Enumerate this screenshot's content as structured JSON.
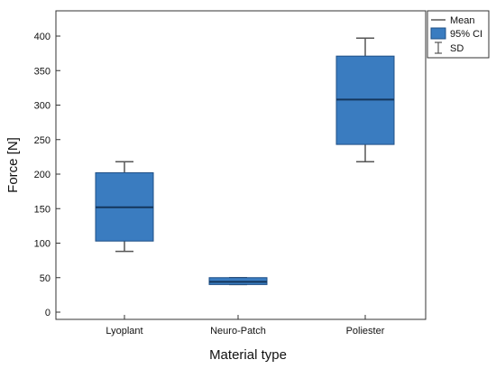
{
  "chart_data": {
    "type": "box",
    "title": "",
    "xlabel": "Material type",
    "ylabel": "Force [N]",
    "ylim": [
      0,
      420
    ],
    "yticks": [
      0,
      50,
      100,
      150,
      200,
      250,
      300,
      350,
      400
    ],
    "categories": [
      "Lyoplant",
      "Neuro-Patch",
      "Poliester"
    ],
    "boxes": [
      {
        "category": "Lyoplant",
        "mean": 152,
        "ci_low": 103,
        "ci_high": 202,
        "sd_low": 88,
        "sd_high": 218
      },
      {
        "category": "Neuro-Patch",
        "mean": 44,
        "ci_low": 40,
        "ci_high": 50,
        "sd_low": 40,
        "sd_high": 50
      },
      {
        "category": "Poliester",
        "mean": 308,
        "ci_low": 243,
        "ci_high": 371,
        "sd_low": 218,
        "sd_high": 397
      }
    ],
    "legend": {
      "placement": "top-right",
      "entries": [
        {
          "label": "Mean",
          "symbol": "line"
        },
        {
          "label": "95% CI",
          "symbol": "box"
        },
        {
          "label": "SD",
          "symbol": "errorbar"
        }
      ]
    },
    "colors": {
      "box_fill": "#3a7cc0",
      "box_stroke": "#1f4f86",
      "mean_line": "#14365c",
      "whisker": "#555555"
    },
    "grid": false
  }
}
